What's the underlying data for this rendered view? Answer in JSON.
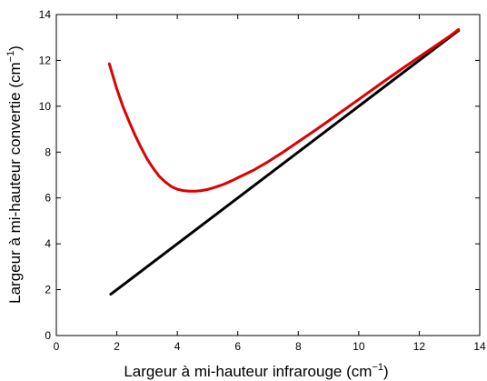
{
  "chart_data": {
    "type": "line",
    "xlabel": "Largeur à mi-hauteur infrarouge (cm",
    "xlabel_sup": "−1",
    "xlabel_end": ")",
    "ylabel": "Largeur à mi-hauteur convertie (cm",
    "ylabel_sup": "−1",
    "ylabel_end": ")",
    "xlim": [
      0,
      14
    ],
    "ylim": [
      0,
      14
    ],
    "xticks": [
      0,
      2,
      4,
      6,
      8,
      10,
      12,
      14
    ],
    "yticks": [
      0,
      2,
      4,
      6,
      8,
      10,
      12,
      14
    ],
    "grid": false,
    "legend": "none",
    "series": [
      {
        "color": "#000000",
        "x": [
          1.8,
          13.3
        ],
        "y": [
          1.8,
          13.3
        ]
      },
      {
        "color": "#e00000",
        "x": [
          1.75,
          1.9,
          2.0,
          2.2,
          2.4,
          2.6,
          2.8,
          3.0,
          3.2,
          3.4,
          3.6,
          3.8,
          4.0,
          4.2,
          4.4,
          4.6,
          4.8,
          5.0,
          5.2,
          5.5,
          5.8,
          6.0,
          6.5,
          7.0,
          7.5,
          8.0,
          8.5,
          9.0,
          9.5,
          10.0,
          10.5,
          11.0,
          11.5,
          12.0,
          12.5,
          13.0,
          13.3
        ],
        "y": [
          11.85,
          11.2,
          10.75,
          10.0,
          9.35,
          8.75,
          8.2,
          7.7,
          7.3,
          6.95,
          6.7,
          6.5,
          6.38,
          6.32,
          6.3,
          6.3,
          6.32,
          6.37,
          6.45,
          6.58,
          6.75,
          6.88,
          7.2,
          7.58,
          8.0,
          8.45,
          8.9,
          9.36,
          9.83,
          10.3,
          10.77,
          11.24,
          11.7,
          12.15,
          12.6,
          13.05,
          13.35
        ]
      }
    ]
  }
}
